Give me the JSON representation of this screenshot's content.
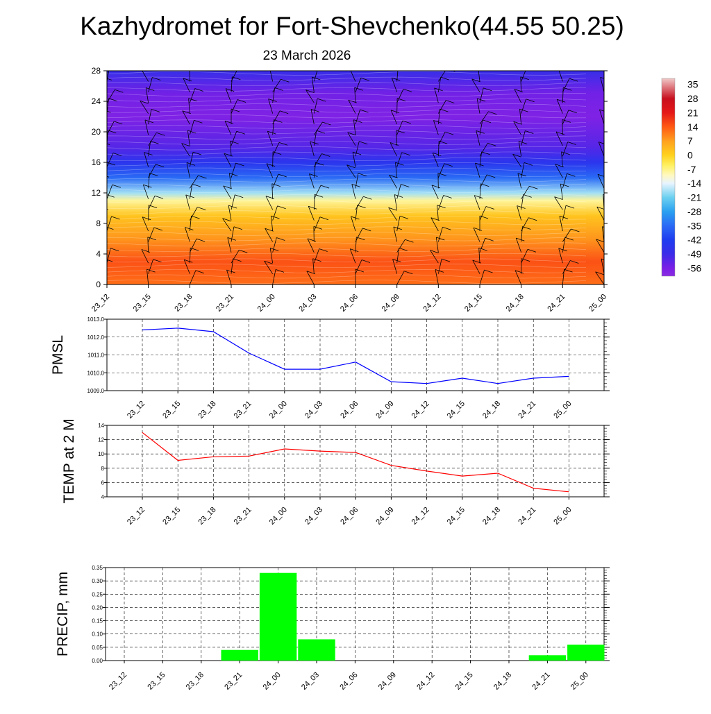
{
  "title": "Kazhydromet for Fort-Shevchenko(44.55 50.25)",
  "subtitle": "23 March 2026",
  "times": [
    "23_12",
    "23_15",
    "23_18",
    "23_21",
    "24_00",
    "24_03",
    "24_06",
    "24_09",
    "24_12",
    "24_15",
    "24_18",
    "24_21",
    "25_00"
  ],
  "colors": {
    "pmsl_line": "#0000ff",
    "temp_line": "#ff0000",
    "precip_bar": "#00ff00",
    "barb": "#000000"
  },
  "chart_data": [
    {
      "type": "heatmap",
      "title": "",
      "xlabel": "",
      "ylabel": "",
      "x": [
        "23_12",
        "23_15",
        "23_18",
        "23_21",
        "24_00",
        "24_03",
        "24_06",
        "24_09",
        "24_12",
        "24_15",
        "24_18",
        "24_21",
        "25_00"
      ],
      "y_ticks": [
        "0",
        "4",
        "8",
        "12",
        "16",
        "20",
        "24",
        "28"
      ],
      "ylim": [
        0,
        28
      ],
      "colorbar": {
        "labels": [
          "35",
          "28",
          "21",
          "14",
          "7",
          "0",
          "-7",
          "-14",
          "-21",
          "-28",
          "-35",
          "-42",
          "-49",
          "-56"
        ],
        "range": [
          -60,
          38
        ]
      },
      "profile_description_levels": [
        {
          "level": 0,
          "value": 12
        },
        {
          "level": 3,
          "value": 15
        },
        {
          "level": 6,
          "value": 8
        },
        {
          "level": 9,
          "value": 2
        },
        {
          "level": 11,
          "value": -8
        },
        {
          "level": 12,
          "value": -18
        },
        {
          "level": 14,
          "value": -35
        },
        {
          "level": 16,
          "value": -45
        },
        {
          "level": 18,
          "value": -52
        },
        {
          "level": 22,
          "value": -57
        },
        {
          "level": 25,
          "value": -55
        },
        {
          "level": 28,
          "value": -48
        }
      ],
      "wind_barbs": true
    },
    {
      "type": "line",
      "ylabel": "PMSL",
      "x": [
        "23_12",
        "23_15",
        "23_18",
        "23_21",
        "24_00",
        "24_03",
        "24_06",
        "24_09",
        "24_12",
        "24_15",
        "24_18",
        "24_21",
        "25_00"
      ],
      "series": [
        {
          "values": [
            1012.4,
            1012.5,
            1012.3,
            1011.1,
            1010.2,
            1010.2,
            1010.6,
            1009.5,
            1009.4,
            1009.7,
            1009.4,
            1009.7,
            1009.8
          ]
        }
      ],
      "y_ticks": [
        "1009.0",
        "1010.0",
        "1011.0",
        "1012.0",
        "1013.0"
      ],
      "ylim": [
        1009.0,
        1013.0
      ],
      "grid": true
    },
    {
      "type": "line",
      "ylabel": "TEMP at 2 M",
      "x": [
        "23_12",
        "23_15",
        "23_18",
        "23_21",
        "24_00",
        "24_03",
        "24_06",
        "24_09",
        "24_12",
        "24_15",
        "24_18",
        "24_21",
        "25_00"
      ],
      "series": [
        {
          "values": [
            13.0,
            9.1,
            9.6,
            9.7,
            10.7,
            10.4,
            10.2,
            8.4,
            7.6,
            6.9,
            7.3,
            5.2,
            4.7
          ]
        }
      ],
      "y_ticks": [
        "4",
        "6",
        "8",
        "10",
        "12",
        "14"
      ],
      "ylim": [
        4,
        14
      ],
      "grid": true
    },
    {
      "type": "bar",
      "ylabel": "PRECIP, mm",
      "categories": [
        "23_12",
        "23_15",
        "23_18",
        "23_21",
        "24_00",
        "24_03",
        "24_06",
        "24_09",
        "24_12",
        "24_15",
        "24_18",
        "24_21",
        "25_00"
      ],
      "values": [
        0,
        0,
        0,
        0.04,
        0.33,
        0.08,
        0,
        0,
        0,
        0,
        0,
        0.02,
        0.06
      ],
      "y_ticks": [
        "0.00",
        "0.05",
        "0.10",
        "0.15",
        "0.20",
        "0.25",
        "0.30",
        "0.35"
      ],
      "ylim": [
        0,
        0.35
      ],
      "grid": true
    }
  ]
}
